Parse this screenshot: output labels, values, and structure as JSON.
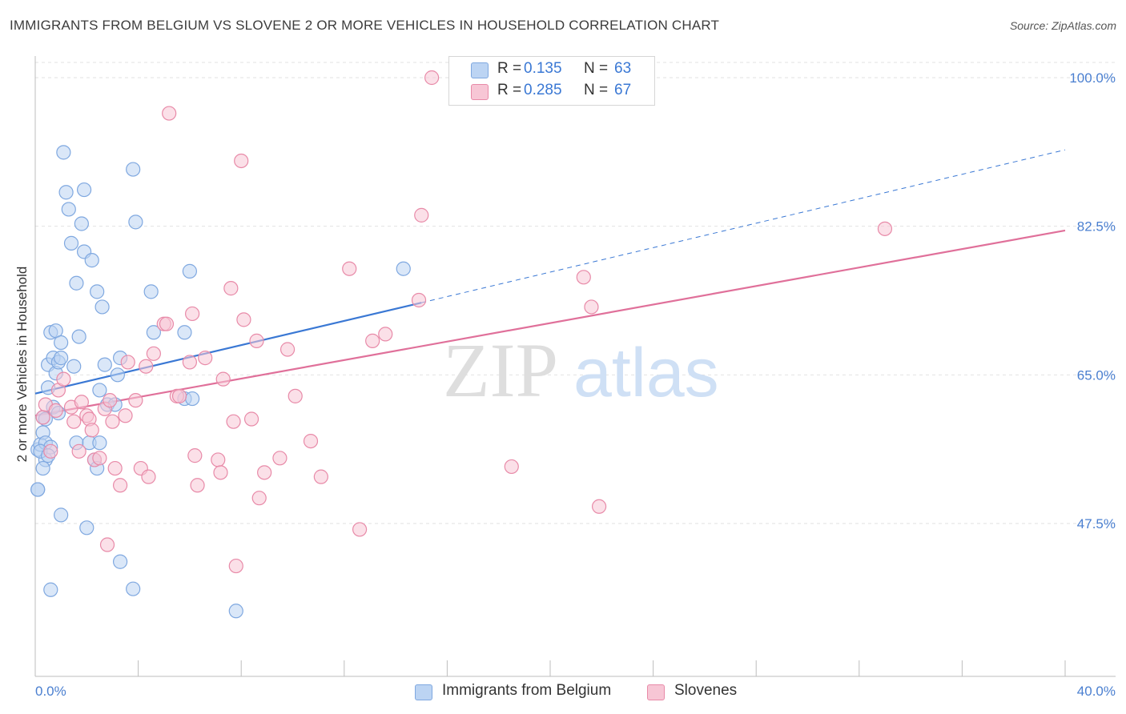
{
  "title": "IMMIGRANTS FROM BELGIUM VS SLOVENE 2 OR MORE VEHICLES IN HOUSEHOLD CORRELATION CHART",
  "source": "Source: ZipAtlas.com",
  "watermark": {
    "zip": "ZIP",
    "atlas": "atlas"
  },
  "legend": {
    "rows": [
      {
        "r_label": "R =",
        "r_value": "0.135",
        "n_label": "N =",
        "n_value": "63"
      },
      {
        "r_label": "R =",
        "r_value": "0.285",
        "n_label": "N =",
        "n_value": "67"
      }
    ]
  },
  "bottom_legend": {
    "series_a": "Immigrants from Belgium",
    "series_b": "Slovenes"
  },
  "colors": {
    "blue": "#3a78d4",
    "blue_fill": "#bcd4f3",
    "pink": "#e0709a",
    "pink_fill": "#f7c6d5"
  },
  "chart_data": {
    "type": "scatter",
    "title": "IMMIGRANTS FROM BELGIUM VS SLOVENE 2 OR MORE VEHICLES IN HOUSEHOLD CORRELATION CHART",
    "xlabel": "",
    "ylabel": "2 or more Vehicles in Household",
    "xlim": [
      0,
      40
    ],
    "ylim": [
      30,
      102
    ],
    "x_tick_labels": [
      "0.0%",
      "40.0%"
    ],
    "y_ticks": [
      47.5,
      65.0,
      82.5,
      100.0
    ],
    "y_tick_labels": [
      "47.5%",
      "65.0%",
      "82.5%",
      "100.0%"
    ],
    "series": [
      {
        "name": "Immigrants from Belgium",
        "color": "#3a78d4",
        "trend": {
          "x0": 0,
          "y0": 62.8,
          "x1": 15.0,
          "y1": 73.5,
          "dashed_to_x": 40,
          "dashed_to_y": 91.5
        },
        "points": [
          [
            0.1,
            51.5
          ],
          [
            0.1,
            56.2
          ],
          [
            0.2,
            56.8
          ],
          [
            0.3,
            58.2
          ],
          [
            0.3,
            60.0
          ],
          [
            0.4,
            57.0
          ],
          [
            0.4,
            55.0
          ],
          [
            0.5,
            66.2
          ],
          [
            0.5,
            63.5
          ],
          [
            0.6,
            70.0
          ],
          [
            0.6,
            56.5
          ],
          [
            0.6,
            39.7
          ],
          [
            0.7,
            67.0
          ],
          [
            0.7,
            61.2
          ],
          [
            0.8,
            65.2
          ],
          [
            0.8,
            70.2
          ],
          [
            0.9,
            66.5
          ],
          [
            1.0,
            67.0
          ],
          [
            1.0,
            68.8
          ],
          [
            1.0,
            48.5
          ],
          [
            1.1,
            91.2
          ],
          [
            1.2,
            86.5
          ],
          [
            1.3,
            84.5
          ],
          [
            1.4,
            80.5
          ],
          [
            1.6,
            57.0
          ],
          [
            1.6,
            75.8
          ],
          [
            1.7,
            69.5
          ],
          [
            1.8,
            82.8
          ],
          [
            1.9,
            79.5
          ],
          [
            1.9,
            86.8
          ],
          [
            2.0,
            47.0
          ],
          [
            2.1,
            57.0
          ],
          [
            2.2,
            78.5
          ],
          [
            2.3,
            55.0
          ],
          [
            2.4,
            54.0
          ],
          [
            2.4,
            74.8
          ],
          [
            2.5,
            63.2
          ],
          [
            2.5,
            57.0
          ],
          [
            2.6,
            73.0
          ],
          [
            2.7,
            66.2
          ],
          [
            2.8,
            61.5
          ],
          [
            3.1,
            61.5
          ],
          [
            3.2,
            65.0
          ],
          [
            3.3,
            67.0
          ],
          [
            3.3,
            43.0
          ],
          [
            3.8,
            89.2
          ],
          [
            3.8,
            39.8
          ],
          [
            3.9,
            83.0
          ],
          [
            4.5,
            74.8
          ],
          [
            4.6,
            70.0
          ],
          [
            5.8,
            62.2
          ],
          [
            5.8,
            70.0
          ],
          [
            6.0,
            77.2
          ],
          [
            6.1,
            62.2
          ],
          [
            7.8,
            37.2
          ],
          [
            14.3,
            77.5
          ],
          [
            0.2,
            56.0
          ],
          [
            0.3,
            54.0
          ],
          [
            0.5,
            55.5
          ],
          [
            0.9,
            60.5
          ],
          [
            0.4,
            59.8
          ],
          [
            1.5,
            66.0
          ],
          [
            0.1,
            51.5
          ]
        ]
      },
      {
        "name": "Slovenes",
        "color": "#e0709a",
        "trend": {
          "x0": 0,
          "y0": 60.2,
          "x1": 40,
          "y1": 82.0
        },
        "points": [
          [
            0.3,
            60.0
          ],
          [
            0.4,
            61.5
          ],
          [
            0.6,
            56.0
          ],
          [
            0.8,
            60.8
          ],
          [
            0.9,
            63.2
          ],
          [
            1.1,
            64.5
          ],
          [
            1.4,
            61.2
          ],
          [
            1.5,
            59.5
          ],
          [
            1.7,
            56.0
          ],
          [
            1.8,
            61.8
          ],
          [
            2.0,
            60.2
          ],
          [
            2.1,
            59.8
          ],
          [
            2.2,
            58.5
          ],
          [
            2.3,
            55.0
          ],
          [
            2.5,
            55.2
          ],
          [
            2.7,
            61.0
          ],
          [
            2.8,
            45.0
          ],
          [
            2.9,
            62.0
          ],
          [
            3.0,
            59.5
          ],
          [
            3.1,
            54.0
          ],
          [
            3.3,
            52.0
          ],
          [
            3.5,
            60.2
          ],
          [
            3.6,
            66.5
          ],
          [
            3.9,
            62.0
          ],
          [
            4.1,
            54.0
          ],
          [
            4.3,
            66.0
          ],
          [
            4.4,
            53.0
          ],
          [
            4.6,
            67.5
          ],
          [
            5.0,
            71.0
          ],
          [
            5.1,
            71.0
          ],
          [
            5.5,
            62.5
          ],
          [
            5.2,
            95.8
          ],
          [
            5.6,
            62.5
          ],
          [
            6.0,
            66.5
          ],
          [
            6.1,
            72.2
          ],
          [
            6.2,
            55.5
          ],
          [
            6.3,
            52.0
          ],
          [
            6.6,
            67.0
          ],
          [
            7.1,
            55.0
          ],
          [
            7.2,
            53.5
          ],
          [
            7.3,
            64.5
          ],
          [
            7.6,
            75.2
          ],
          [
            7.7,
            59.5
          ],
          [
            7.8,
            42.5
          ],
          [
            8.0,
            90.2
          ],
          [
            8.1,
            71.5
          ],
          [
            8.4,
            59.8
          ],
          [
            8.6,
            69.0
          ],
          [
            8.7,
            50.5
          ],
          [
            8.9,
            53.5
          ],
          [
            9.5,
            55.2
          ],
          [
            9.8,
            68.0
          ],
          [
            10.1,
            62.5
          ],
          [
            10.7,
            57.2
          ],
          [
            11.1,
            53.0
          ],
          [
            12.2,
            77.5
          ],
          [
            12.6,
            46.8
          ],
          [
            13.1,
            69.0
          ],
          [
            13.6,
            69.8
          ],
          [
            14.9,
            73.8
          ],
          [
            15.0,
            83.8
          ],
          [
            15.4,
            100.0
          ],
          [
            18.5,
            54.2
          ],
          [
            21.3,
            76.5
          ],
          [
            21.6,
            73.0
          ],
          [
            21.9,
            49.5
          ],
          [
            33.0,
            82.2
          ]
        ]
      }
    ]
  }
}
